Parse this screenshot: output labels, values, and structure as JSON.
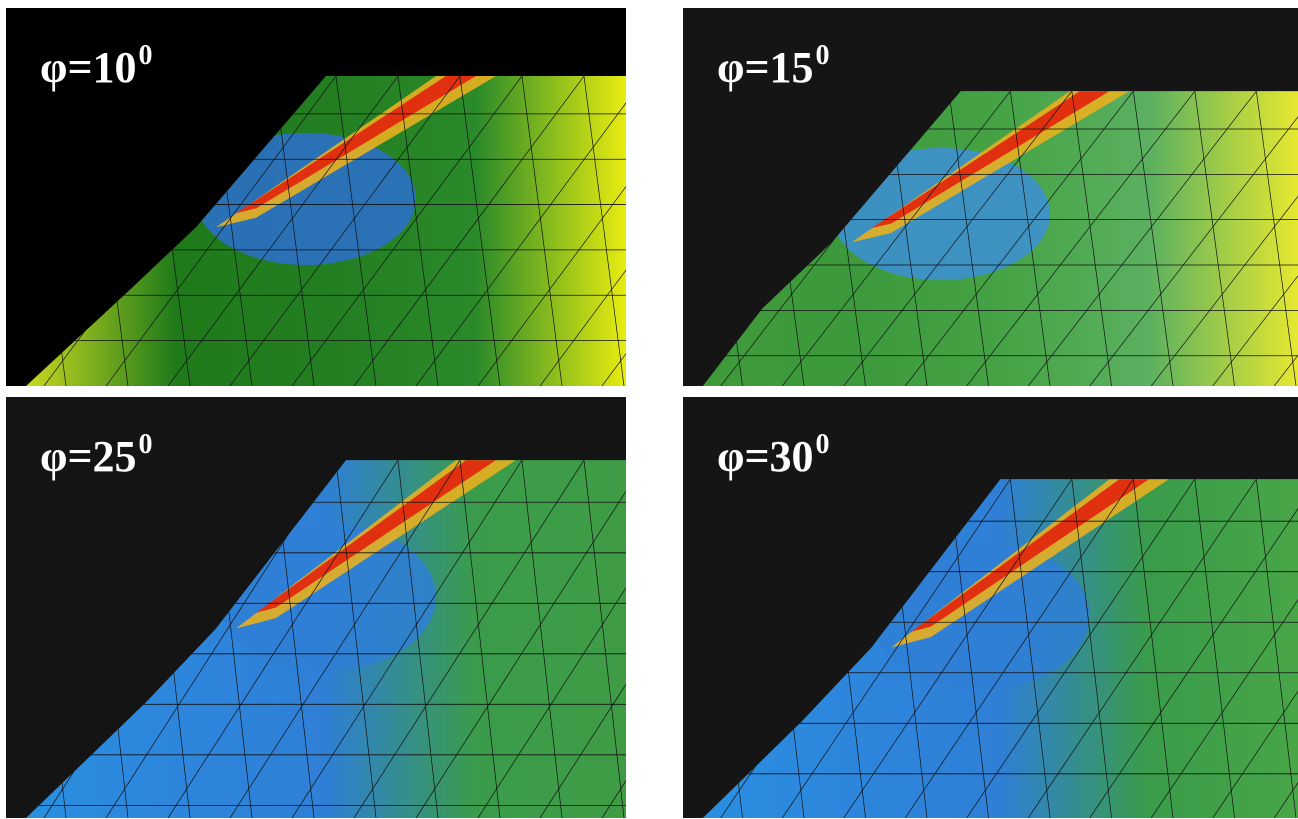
{
  "panels": [
    {
      "label": "φ=10",
      "superscript": "0"
    },
    {
      "label": "φ=15",
      "superscript": "0"
    },
    {
      "label": "φ=25",
      "superscript": "0"
    },
    {
      "label": "φ=30",
      "superscript": "0"
    }
  ]
}
